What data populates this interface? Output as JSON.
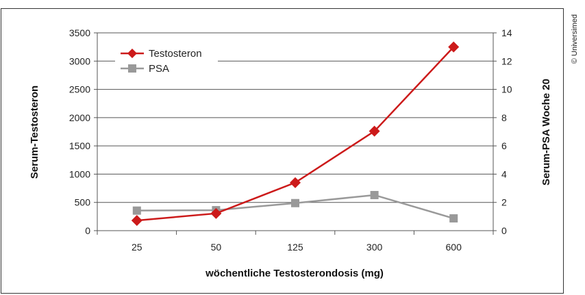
{
  "chart_data": {
    "type": "line",
    "title": "",
    "xlabel": "wöchentliche Testosterondosis (mg)",
    "ylabel": "Serum-Testosteron",
    "y2label": "Serum-PSA Woche 20",
    "categories": [
      "25",
      "50",
      "125",
      "300",
      "600"
    ],
    "ylim": [
      0,
      3500
    ],
    "yticks": [
      "0",
      "500",
      "1000",
      "1500",
      "2000",
      "2500",
      "3000",
      "3500"
    ],
    "y2lim": [
      0,
      14
    ],
    "y2ticks": [
      "0",
      "2",
      "4",
      "6",
      "8",
      "10",
      "12",
      "14"
    ],
    "grid": true,
    "legend_position": "top-left",
    "series": [
      {
        "name": "Testosteron",
        "axis": "left",
        "color": "#cc1a1a",
        "marker": "diamond",
        "values": [
          180,
          305,
          850,
          1760,
          3250
        ]
      },
      {
        "name": "PSA",
        "axis": "right",
        "color": "#999999",
        "marker": "square",
        "values": [
          1.42,
          1.45,
          1.95,
          2.52,
          0.87
        ]
      }
    ]
  },
  "credit": "© Universimed"
}
